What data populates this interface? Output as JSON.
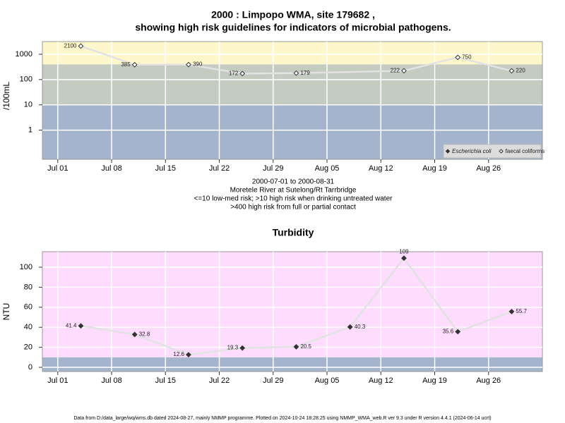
{
  "chart_data": [
    {
      "type": "line",
      "title": "2000 : Limpopo WMA, site 179682 ,",
      "subtitle": "showing high risk guidelines for indicators of microbial pathogens.",
      "ylabel": "/100mL",
      "log_scale": true,
      "grid": true,
      "legend": "bottom-right",
      "x": [
        "2000-07-04",
        "2000-07-11",
        "2000-07-18",
        "2000-07-25",
        "2000-08-01",
        "2000-08-15",
        "2000-08-22",
        "2000-08-29"
      ],
      "xlim": [
        "2000-06-29",
        "2000-09-02"
      ],
      "xticks": [
        {
          "value": "2000-07-01",
          "label": "Jul 01"
        },
        {
          "value": "2000-07-08",
          "label": "Jul 08"
        },
        {
          "value": "2000-07-15",
          "label": "Jul 15"
        },
        {
          "value": "2000-07-22",
          "label": "Jul 22"
        },
        {
          "value": "2000-07-29",
          "label": "Jul 29"
        },
        {
          "value": "2000-08-05",
          "label": "Aug 05"
        },
        {
          "value": "2000-08-12",
          "label": "Aug 12"
        },
        {
          "value": "2000-08-19",
          "label": "Aug 19"
        },
        {
          "value": "2000-08-26",
          "label": "Aug 26"
        }
      ],
      "ylim": [
        0.07,
        3162
      ],
      "yticks": [
        1,
        10,
        100,
        1000
      ],
      "bands": [
        {
          "from": 0.07,
          "to": 10,
          "color": "#a4b4cc"
        },
        {
          "from": 10,
          "to": 400,
          "color": "#c4cbc0"
        },
        {
          "from": 400,
          "to": 3162,
          "color": "#fdf7cb"
        }
      ],
      "series": [
        {
          "name": "Escherichia coli",
          "color": "#333333",
          "marker": "filled",
          "values": [
            null,
            null,
            null,
            null,
            null,
            null,
            null,
            null
          ]
        },
        {
          "name": "faecal coliforms",
          "color": "#333333",
          "marker": "open",
          "values": [
            2100,
            385,
            390,
            172,
            179,
            222,
            750,
            220
          ]
        }
      ]
    },
    {
      "type": "line",
      "title": "Turbidity",
      "ylabel": "NTU",
      "grid": true,
      "x": [
        "2000-07-04",
        "2000-07-11",
        "2000-07-18",
        "2000-07-25",
        "2000-08-01",
        "2000-08-08",
        "2000-08-15",
        "2000-08-22",
        "2000-08-29"
      ],
      "xlim": [
        "2000-06-29",
        "2000-09-02"
      ],
      "xticks": [
        {
          "value": "2000-07-01",
          "label": "Jul 01"
        },
        {
          "value": "2000-07-08",
          "label": "Jul 08"
        },
        {
          "value": "2000-07-15",
          "label": "Jul 15"
        },
        {
          "value": "2000-07-22",
          "label": "Jul 22"
        },
        {
          "value": "2000-07-29",
          "label": "Jul 29"
        },
        {
          "value": "2000-08-05",
          "label": "Aug 05"
        },
        {
          "value": "2000-08-12",
          "label": "Aug 12"
        },
        {
          "value": "2000-08-19",
          "label": "Aug 19"
        },
        {
          "value": "2000-08-26",
          "label": "Aug 26"
        }
      ],
      "ylim": [
        -4.2,
        115.5
      ],
      "yticks": [
        0,
        20,
        40,
        60,
        80,
        100
      ],
      "bands": [
        {
          "from": -4.2,
          "to": 10,
          "color": "#a4b4cc"
        },
        {
          "from": 10,
          "to": 115.5,
          "color": "#fddcfd"
        }
      ],
      "series": [
        {
          "color": "#333333",
          "marker": "filled",
          "values": [
            41.4,
            32.8,
            12.6,
            19.3,
            20.5,
            40.3,
            109,
            35.6,
            55.7
          ]
        }
      ]
    }
  ],
  "notes": [
    "2000-07-01 to 2000-08-31",
    "Moretele River at Sutelong/Rt Tarrbridge",
    "<=10 low-med risk; >10 high risk when drinking untreated water",
    ">400 high risk from full or partial contact"
  ],
  "footer": "Data from D:/data_large/wq/wms.db dated 2024-08-27, mainly NMMP programme. Plotted on 2024-10-24 18:28:25 using NMMP_WMA_web.R ver 9.3 under R version 4.4.1 (2024-06-14 ucrt)"
}
